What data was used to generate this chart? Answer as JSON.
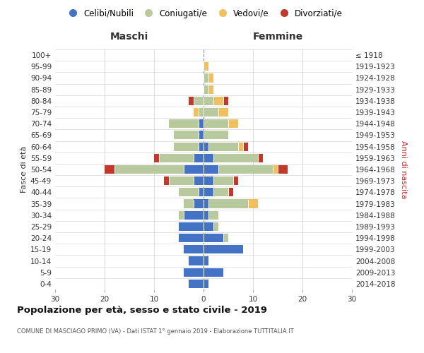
{
  "age_groups": [
    "0-4",
    "5-9",
    "10-14",
    "15-19",
    "20-24",
    "25-29",
    "30-34",
    "35-39",
    "40-44",
    "45-49",
    "50-54",
    "55-59",
    "60-64",
    "65-69",
    "70-74",
    "75-79",
    "80-84",
    "85-89",
    "90-94",
    "95-99",
    "100+"
  ],
  "birth_years": [
    "2014-2018",
    "2009-2013",
    "2004-2008",
    "1999-2003",
    "1994-1998",
    "1989-1993",
    "1984-1988",
    "1979-1983",
    "1974-1978",
    "1969-1973",
    "1964-1968",
    "1959-1963",
    "1954-1958",
    "1949-1953",
    "1944-1948",
    "1939-1943",
    "1934-1938",
    "1929-1933",
    "1924-1928",
    "1919-1923",
    "≤ 1918"
  ],
  "maschi": {
    "celibi": [
      3,
      4,
      3,
      4,
      5,
      5,
      4,
      2,
      1,
      2,
      4,
      2,
      1,
      1,
      1,
      0,
      0,
      0,
      0,
      0,
      0
    ],
    "coniugati": [
      0,
      0,
      0,
      0,
      0,
      0,
      1,
      2,
      4,
      5,
      14,
      7,
      5,
      5,
      6,
      1,
      2,
      0,
      0,
      0,
      0
    ],
    "vedovi": [
      0,
      0,
      0,
      0,
      0,
      0,
      0,
      0,
      0,
      0,
      0,
      0,
      0,
      0,
      0,
      1,
      0,
      0,
      0,
      0,
      0
    ],
    "divorziati": [
      0,
      0,
      0,
      0,
      0,
      0,
      0,
      0,
      0,
      1,
      2,
      1,
      0,
      0,
      0,
      0,
      1,
      0,
      0,
      0,
      0
    ]
  },
  "femmine": {
    "nubili": [
      1,
      4,
      1,
      8,
      4,
      2,
      1,
      1,
      2,
      2,
      3,
      2,
      1,
      0,
      0,
      0,
      0,
      0,
      0,
      0,
      0
    ],
    "coniugate": [
      0,
      0,
      0,
      0,
      1,
      1,
      2,
      8,
      3,
      4,
      11,
      9,
      6,
      5,
      5,
      3,
      2,
      1,
      1,
      0,
      0
    ],
    "vedove": [
      0,
      0,
      0,
      0,
      0,
      0,
      0,
      2,
      0,
      0,
      1,
      0,
      1,
      0,
      2,
      2,
      2,
      1,
      1,
      1,
      0
    ],
    "divorziate": [
      0,
      0,
      0,
      0,
      0,
      0,
      0,
      0,
      1,
      1,
      2,
      1,
      1,
      0,
      0,
      0,
      1,
      0,
      0,
      0,
      0
    ]
  },
  "colors": {
    "celibi": "#4472c4",
    "coniugati": "#b8c99d",
    "vedovi": "#f0c060",
    "divorziati": "#c0392b"
  },
  "legend_labels": [
    "Celibi/Nubili",
    "Coniugati/e",
    "Vedovi/e",
    "Divorziati/e"
  ],
  "title": "Popolazione per età, sesso e stato civile - 2019",
  "subtitle": "COMUNE DI MASCIAGO PRIMO (VA) - Dati ISTAT 1° gennaio 2019 - Elaborazione TUTTITALIA.IT",
  "label_maschi": "Maschi",
  "label_femmine": "Femmine",
  "ylabel_left": "Fasce di età",
  "ylabel_right": "Anni di nascita",
  "xlim": 30,
  "bg_color": "#ffffff",
  "grid_color": "#cccccc",
  "anni_color": "#cc2222",
  "center_line_color": "#888888"
}
